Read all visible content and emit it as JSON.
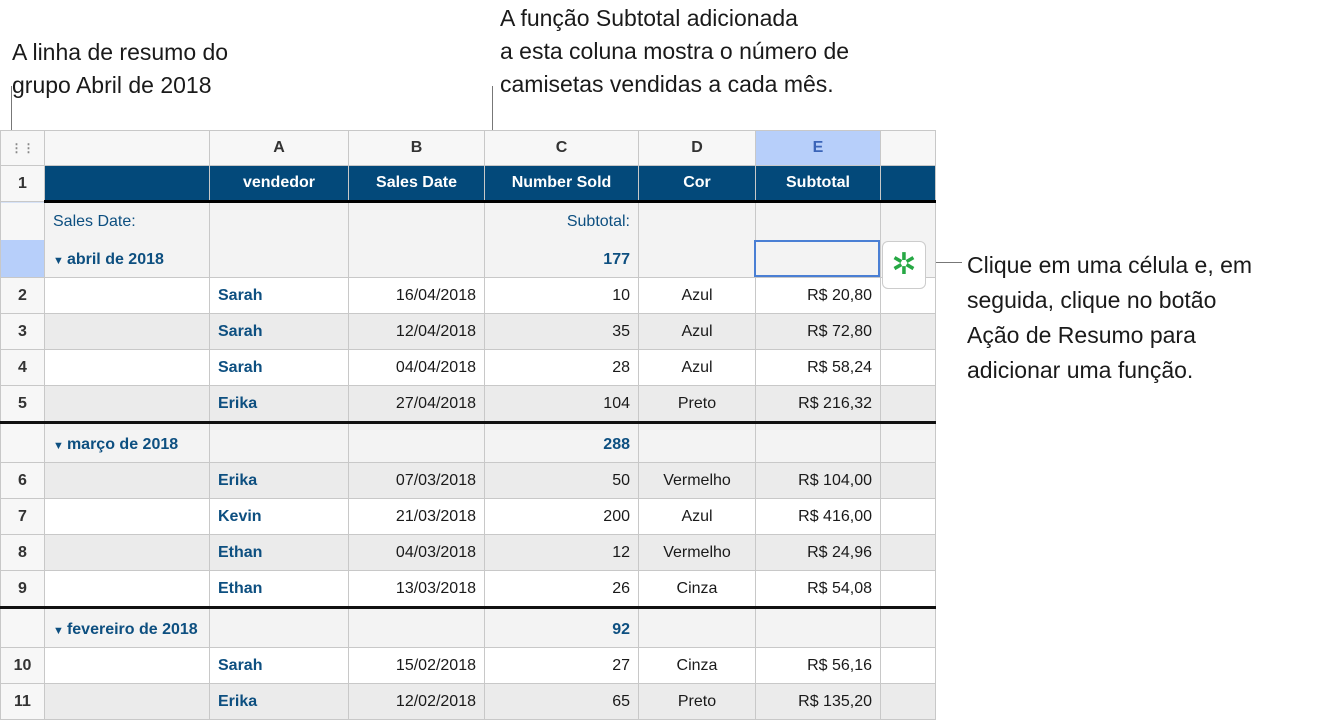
{
  "annotations": {
    "left": "A linha de resumo do\ngrupo Abril de 2018",
    "top": "A função Subtotal adicionada\na esta coluna mostra o número de\ncamisetas vendidas a cada mês.",
    "right": "Clique em uma célula e, em\nseguida, clique no botão\nAção de Resumo para\nadicionar uma função."
  },
  "columns": [
    "A",
    "B",
    "C",
    "D",
    "E"
  ],
  "selected_column": "E",
  "header": {
    "row": "1",
    "cells": [
      "",
      "vendedor",
      "Sales Date",
      "Number Sold",
      "Cor",
      "Subtotal",
      ""
    ]
  },
  "summary_label": "Sales Date:",
  "subtotal_label": "Subtotal:",
  "groups": [
    {
      "label": "abril de 2018",
      "subtotal": "177",
      "rows": [
        {
          "n": "2",
          "vendedor": "Sarah",
          "date": "16/04/2018",
          "sold": "10",
          "cor": "Azul",
          "subtotal": "R$ 20,80",
          "shade": false
        },
        {
          "n": "3",
          "vendedor": "Sarah",
          "date": "12/04/2018",
          "sold": "35",
          "cor": "Azul",
          "subtotal": "R$ 72,80",
          "shade": true
        },
        {
          "n": "4",
          "vendedor": "Sarah",
          "date": "04/04/2018",
          "sold": "28",
          "cor": "Azul",
          "subtotal": "R$ 58,24",
          "shade": false
        },
        {
          "n": "5",
          "vendedor": "Erika",
          "date": "27/04/2018",
          "sold": "104",
          "cor": "Preto",
          "subtotal": "R$ 216,32",
          "shade": true
        }
      ]
    },
    {
      "label": "março de 2018",
      "subtotal": "288",
      "rows": [
        {
          "n": "6",
          "vendedor": "Erika",
          "date": "07/03/2018",
          "sold": "50",
          "cor": "Vermelho",
          "subtotal": "R$ 104,00",
          "shade": true
        },
        {
          "n": "7",
          "vendedor": "Kevin",
          "date": "21/03/2018",
          "sold": "200",
          "cor": "Azul",
          "subtotal": "R$ 416,00",
          "shade": false
        },
        {
          "n": "8",
          "vendedor": "Ethan",
          "date": "04/03/2018",
          "sold": "12",
          "cor": "Vermelho",
          "subtotal": "R$ 24,96",
          "shade": true
        },
        {
          "n": "9",
          "vendedor": "Ethan",
          "date": "13/03/2018",
          "sold": "26",
          "cor": "Cinza",
          "subtotal": "R$ 54,08",
          "shade": false
        }
      ]
    },
    {
      "label": "fevereiro de 2018",
      "subtotal": "92",
      "rows": [
        {
          "n": "10",
          "vendedor": "Sarah",
          "date": "15/02/2018",
          "sold": "27",
          "cor": "Cinza",
          "subtotal": "R$ 56,16",
          "shade": false
        },
        {
          "n": "11",
          "vendedor": "Erika",
          "date": "12/02/2018",
          "sold": "65",
          "cor": "Preto",
          "subtotal": "R$ 135,20",
          "shade": true
        }
      ]
    }
  ],
  "summary_action_icon": "gear-icon",
  "colors": {
    "header": "#03497a",
    "accent": "#0d4f80",
    "gear": "#26a844",
    "selection": "#b7cffa"
  }
}
